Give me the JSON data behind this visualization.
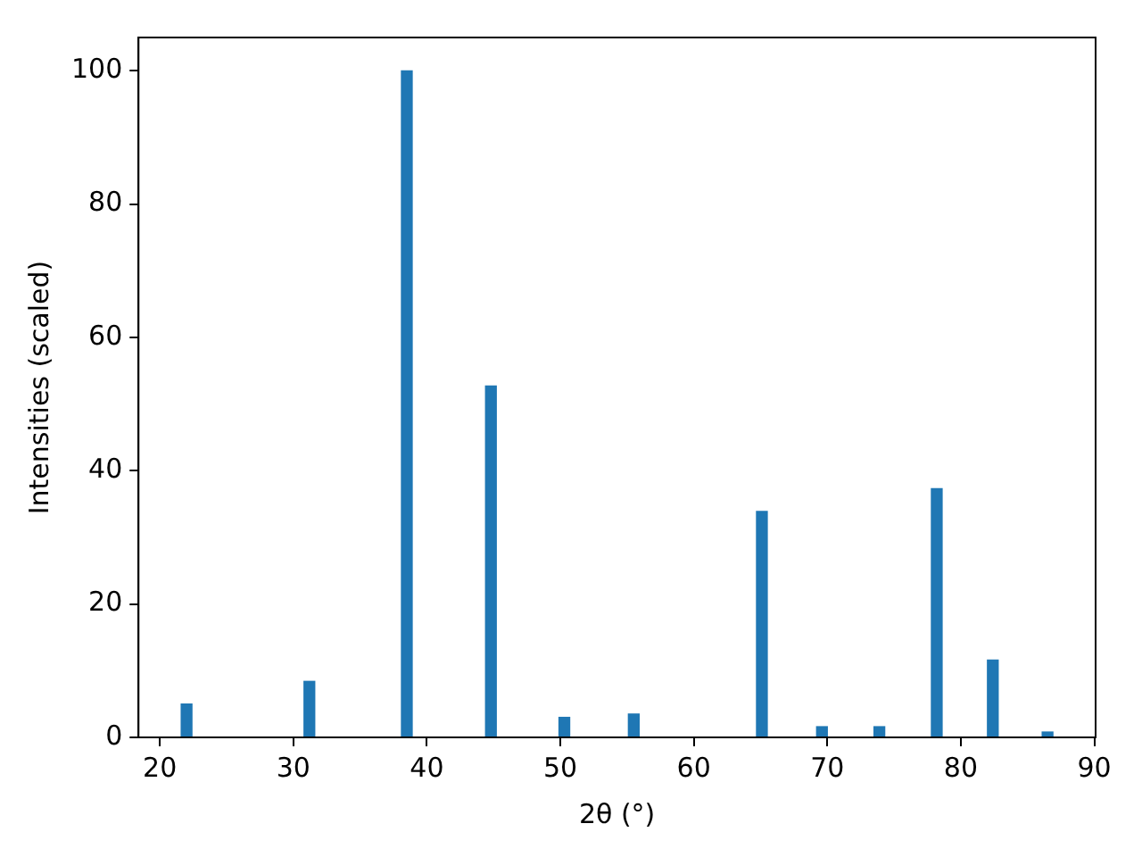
{
  "chart_data": {
    "type": "bar",
    "xlabel": "2θ (°)",
    "ylabel": "Intensities (scaled)",
    "x": [
      22.0,
      31.2,
      38.5,
      44.8,
      50.3,
      55.5,
      65.1,
      69.6,
      73.9,
      78.2,
      82.4,
      86.5
    ],
    "series": [
      {
        "color": "#1f77b4",
        "values": [
          5.0,
          8.4,
          100,
          52.7,
          3.0,
          3.5,
          33.9,
          1.6,
          1.6,
          37.3,
          11.6,
          0.8
        ]
      }
    ],
    "xlim": [
      18.4,
      90.1
    ],
    "xticks": [
      20,
      30,
      40,
      50,
      60,
      70,
      80,
      90
    ],
    "ylim": [
      0,
      105
    ],
    "yticks": [
      0,
      20,
      40,
      60,
      80,
      100
    ],
    "grid": false,
    "legend": false
  }
}
